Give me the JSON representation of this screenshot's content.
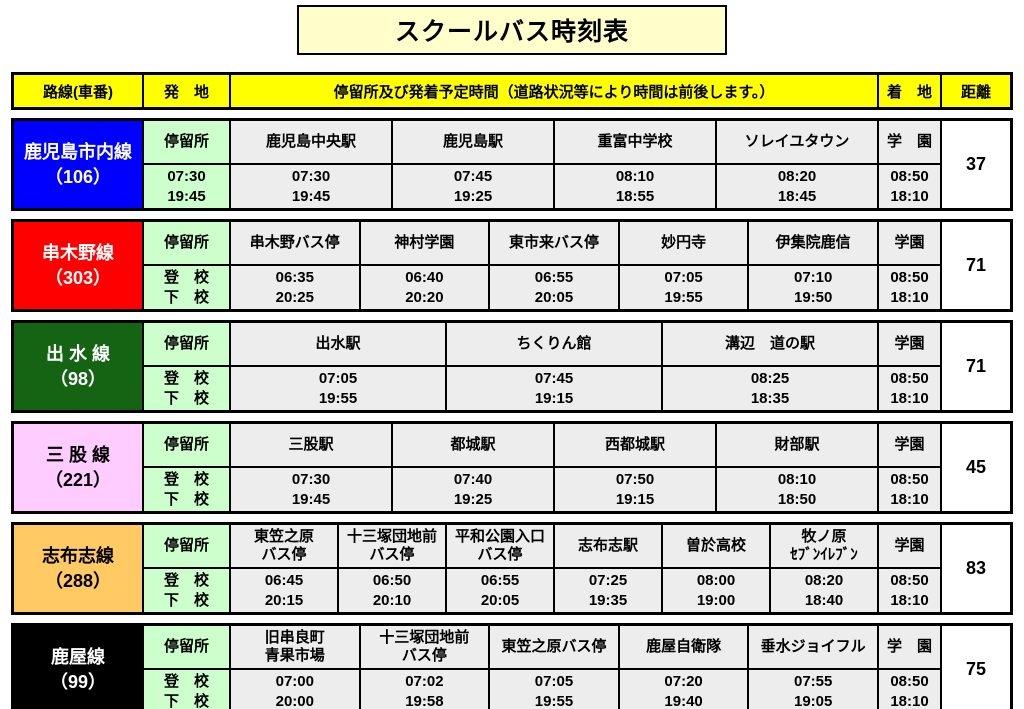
{
  "title": "スクールバス時刻表",
  "header": {
    "route": "路線(車番)",
    "origin": "発　地",
    "stops": "停留所及び発着予定時間（道路状況等により時間は前後します。）",
    "arrival": "着　地",
    "distance": "距離"
  },
  "stop_header_label": "停留所",
  "routes": [
    {
      "id": "kagoshima-shinai",
      "name": "鹿児島市内線\n（106）",
      "bg": "#0000FF",
      "fg": "#FFFFFF",
      "schedule_labels": "07:30\n19:45",
      "stops": [
        {
          "name": "鹿児島中央駅",
          "times": "07:30\n19:45"
        },
        {
          "name": "鹿児島駅",
          "times": "07:45\n19:25"
        },
        {
          "name": "重富中学校",
          "times": "08:10\n18:55"
        },
        {
          "name": "ソレイユタウン",
          "times": "08:20\n18:45"
        }
      ],
      "arrival": {
        "name": "学　園",
        "times": "08:50\n18:10"
      },
      "distance": "37"
    },
    {
      "id": "kushikino",
      "name": "串木野線\n（303）",
      "bg": "#FF0000",
      "fg": "#FFFFFF",
      "schedule_labels": "登　校\n下　校",
      "stops": [
        {
          "name": "串木野バス停",
          "times": "06:35\n20:25"
        },
        {
          "name": "神村学園",
          "times": "06:40\n20:20"
        },
        {
          "name": "東市来バス停",
          "times": "06:55\n20:05"
        },
        {
          "name": "妙円寺",
          "times": "07:05\n19:55"
        },
        {
          "name": "伊集院鹿信",
          "times": "07:10\n19:50"
        }
      ],
      "arrival": {
        "name": "学園",
        "times": "08:50\n18:10"
      },
      "distance": "71"
    },
    {
      "id": "izumi",
      "name": "出 水 線\n（98）",
      "bg": "#146414",
      "fg": "#FFFFFF",
      "schedule_labels": "登　校\n下　校",
      "stops": [
        {
          "name": "出水駅",
          "times": "07:05\n19:55"
        },
        {
          "name": "ちくりん館",
          "times": "07:45\n19:15"
        },
        {
          "name": "溝辺　道の駅",
          "times": "08:25\n18:35"
        }
      ],
      "arrival": {
        "name": "学園",
        "times": "08:50\n18:10"
      },
      "distance": "71"
    },
    {
      "id": "mimata",
      "name": "三 股 線\n（221）",
      "bg": "#FFCCFF",
      "fg": "#000000",
      "schedule_labels": "登　校\n下　校",
      "stops": [
        {
          "name": "三股駅",
          "times": "07:30\n19:45"
        },
        {
          "name": "都城駅",
          "times": "07:40\n19:25"
        },
        {
          "name": "西都城駅",
          "times": "07:50\n19:15"
        },
        {
          "name": "財部駅",
          "times": "08:10\n18:50"
        }
      ],
      "arrival": {
        "name": "学園",
        "times": "08:50\n18:10"
      },
      "distance": "45"
    },
    {
      "id": "shibushi",
      "name": "志布志線\n（288）",
      "bg": "#FFC964",
      "fg": "#000000",
      "schedule_labels": "登　校\n下　校",
      "stops": [
        {
          "name": "東笠之原\nバス停",
          "times": "06:45\n20:15"
        },
        {
          "name": "十三塚団地前\nバス停",
          "times": "06:50\n20:10"
        },
        {
          "name": "平和公園入口\nバス停",
          "times": "06:55\n20:05"
        },
        {
          "name": "志布志駅",
          "times": "07:25\n19:35"
        },
        {
          "name": "曽於高校",
          "times": "08:00\n19:00"
        },
        {
          "name": "牧ノ原\nｾﾌﾞﾝｲﾚﾌﾞﾝ",
          "times": "08:20\n18:40"
        }
      ],
      "arrival": {
        "name": "学園",
        "times": "08:50\n18:10"
      },
      "distance": "83"
    },
    {
      "id": "kanoya",
      "name": "鹿屋線\n（99）",
      "bg": "#000000",
      "fg": "#FFFFFF",
      "schedule_labels": "登　校\n下　校",
      "stops": [
        {
          "name": "旧串良町\n青果市場",
          "times": "07:00\n20:00"
        },
        {
          "name": "十三塚団地前\nバス停",
          "times": "07:02\n19:58"
        },
        {
          "name": "東笠之原バス停",
          "times": "07:05\n19:55"
        },
        {
          "name": "鹿屋自衛隊",
          "times": "07:20\n19:40"
        },
        {
          "name": "垂水ジョイフル",
          "times": "07:55\n19:05"
        }
      ],
      "arrival": {
        "name": "学　園",
        "times": "08:50\n18:10"
      },
      "distance": "75"
    }
  ]
}
